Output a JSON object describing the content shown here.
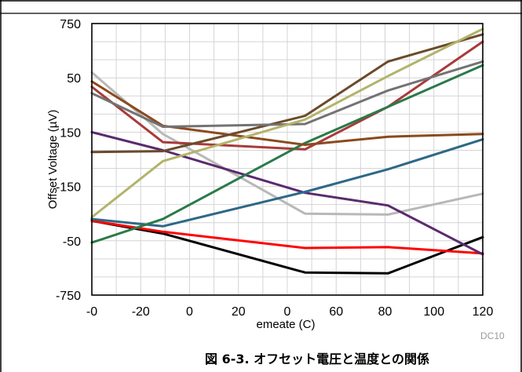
{
  "chart_data": {
    "type": "line",
    "title": "",
    "xlabel": "emeate (C)",
    "ylabel": "Offset Voltage (µV)",
    "x_tick_labels": [
      "-0",
      "-20",
      "0",
      "20",
      "0",
      "60",
      "80",
      "100",
      "120"
    ],
    "y_tick_labels": [
      "750",
      "50",
      "150",
      "-150",
      "-50",
      "-750"
    ],
    "xlim": [
      -40,
      125
    ],
    "ylim": [
      -750,
      750
    ],
    "grid": true,
    "legend": "none",
    "series": [
      {
        "color": "#000000",
        "points": [
          [
            -40,
            -340
          ],
          [
            -10,
            -410
          ],
          [
            50,
            -625
          ],
          [
            85,
            -630
          ],
          [
            125,
            -430
          ]
        ]
      },
      {
        "color": "#ff0000",
        "points": [
          [
            -40,
            -340
          ],
          [
            -10,
            -400
          ],
          [
            50,
            -490
          ],
          [
            85,
            -485
          ],
          [
            125,
            -520
          ]
        ]
      },
      {
        "color": "#b8b8b8",
        "points": [
          [
            -40,
            480
          ],
          [
            -10,
            140
          ],
          [
            50,
            -300
          ],
          [
            85,
            -305
          ],
          [
            125,
            -190
          ]
        ]
      },
      {
        "color": "#5b2a6e",
        "points": [
          [
            -40,
            150
          ],
          [
            -10,
            50
          ],
          [
            50,
            -185
          ],
          [
            85,
            -255
          ],
          [
            125,
            -525
          ]
        ]
      },
      {
        "color": "#2e6887",
        "points": [
          [
            -40,
            -330
          ],
          [
            -10,
            -370
          ],
          [
            50,
            -180
          ],
          [
            85,
            -55
          ],
          [
            125,
            110
          ]
        ]
      },
      {
        "color": "#a93a3a",
        "points": [
          [
            -40,
            400
          ],
          [
            -10,
            95
          ],
          [
            50,
            55
          ],
          [
            85,
            290
          ],
          [
            125,
            650
          ]
        ]
      },
      {
        "color": "#2a7a4a",
        "points": [
          [
            -40,
            -460
          ],
          [
            -10,
            -330
          ],
          [
            50,
            90
          ],
          [
            85,
            290
          ],
          [
            125,
            520
          ]
        ]
      },
      {
        "color": "#8b4a1e",
        "points": [
          [
            -40,
            430
          ],
          [
            -10,
            185
          ],
          [
            50,
            80
          ],
          [
            85,
            125
          ],
          [
            125,
            140
          ]
        ]
      },
      {
        "color": "#6b4a2a",
        "points": [
          [
            -40,
            40
          ],
          [
            -10,
            45
          ],
          [
            50,
            240
          ],
          [
            85,
            540
          ],
          [
            125,
            690
          ]
        ]
      },
      {
        "color": "#737373",
        "points": [
          [
            -40,
            365
          ],
          [
            -10,
            180
          ],
          [
            50,
            195
          ],
          [
            85,
            380
          ],
          [
            125,
            540
          ]
        ]
      },
      {
        "color": "#b3b36b",
        "points": [
          [
            -40,
            -320
          ],
          [
            -10,
            -10
          ],
          [
            50,
            220
          ],
          [
            85,
            460
          ],
          [
            125,
            720
          ]
        ]
      }
    ]
  },
  "figure": {
    "watermark": "DC10",
    "caption": "図 6-3. オフセット電圧と温度との関係"
  }
}
